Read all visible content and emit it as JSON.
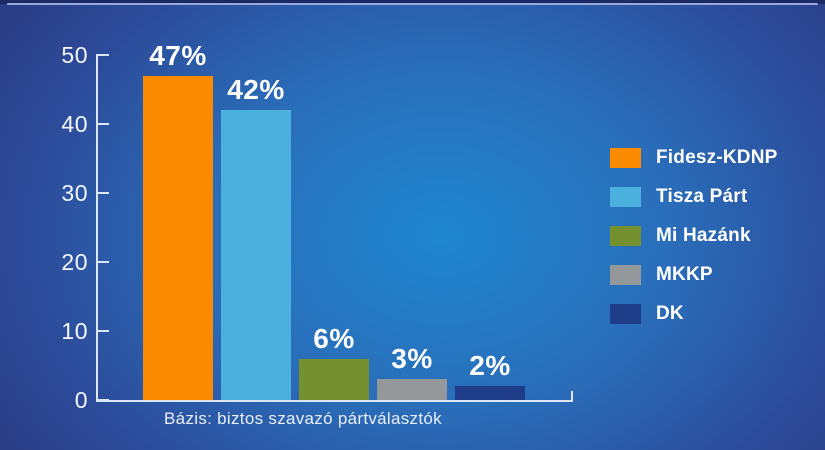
{
  "chart_data": {
    "type": "bar",
    "title": "",
    "categories": [
      "Fidesz-KDNP",
      "Tisza Párt",
      "Mi Hazánk",
      "MKKP",
      "DK"
    ],
    "values": [
      47,
      42,
      6,
      3,
      2
    ],
    "value_labels": [
      "47%",
      "42%",
      "6%",
      "3%",
      "2%"
    ],
    "bar_colors": [
      "#fb8a00",
      "#4bb0de",
      "#75902e",
      "#95989b",
      "#1e3c88"
    ],
    "ylim": [
      0,
      50
    ],
    "yticks": [
      0,
      10,
      20,
      30,
      40,
      50
    ],
    "xlabel": "",
    "ylabel": "",
    "grid": false,
    "legend_position": "right",
    "legend": [
      {
        "label": "Fidesz-KDNP",
        "color": "#fb8a00"
      },
      {
        "label": "Tisza Párt",
        "color": "#4bb0de"
      },
      {
        "label": "Mi Hazánk",
        "color": "#75902e"
      },
      {
        "label": "MKKP",
        "color": "#95989b"
      },
      {
        "label": "DK",
        "color": "#1e3c88"
      }
    ],
    "caption": "Bázis: biztos szavazó pártválasztók"
  },
  "colors": {
    "background_center": "#1f87d0",
    "background_edge": "#293173",
    "top_strip": "#1b2964",
    "top_line": "#96a9da",
    "axis": "#dce7f5",
    "text": "#ffffff"
  }
}
